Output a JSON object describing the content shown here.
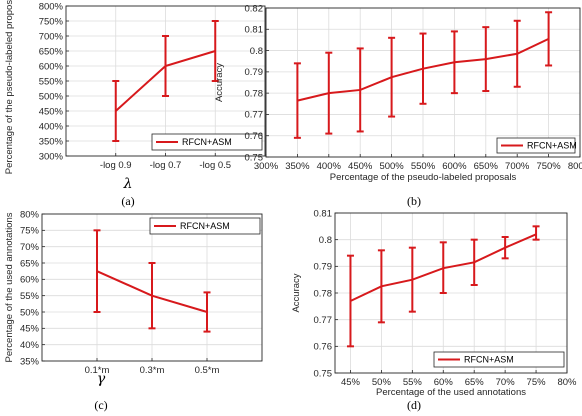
{
  "colors": {
    "series": "#d7191c",
    "grid": "#dcdcdc",
    "axis": "#262626"
  },
  "chart_data": [
    {
      "id": "a",
      "type": "line",
      "caption": "(a)",
      "xlabel": "λ",
      "ylabel": "Percentage of the pseudo-labeled proposals",
      "categories": [
        "-log 0.9",
        "-log 0.7",
        "-log 0.5"
      ],
      "yticks": [
        "300%",
        "350%",
        "400%",
        "450%",
        "500%",
        "550%",
        "600%",
        "650%",
        "700%",
        "750%",
        "800%"
      ],
      "ylim": [
        300,
        800
      ],
      "series": [
        {
          "name": "RFCN+ASM",
          "values": [
            450,
            600,
            650
          ],
          "err_low": [
            350,
            500,
            550
          ],
          "err_high": [
            550,
            700,
            750
          ]
        }
      ],
      "legend": "bottom-right",
      "grid": true
    },
    {
      "id": "b",
      "type": "line",
      "caption": "(b)",
      "xlabel": "Percentage of the pseudo-labeled proposals",
      "ylabel": "Accuracy",
      "xticks": [
        "300%",
        "350%",
        "400%",
        "450%",
        "500%",
        "550%",
        "600%",
        "650%",
        "700%",
        "750%",
        "800%"
      ],
      "yticks": [
        "0.75",
        "0.76",
        "0.77",
        "0.78",
        "0.79",
        "0.8",
        "0.81",
        "0.82"
      ],
      "xlim": [
        300,
        800
      ],
      "ylim": [
        0.75,
        0.82
      ],
      "series": [
        {
          "name": "RFCN+ASM",
          "x": [
            350,
            400,
            450,
            500,
            550,
            600,
            650,
            700,
            750
          ],
          "values": [
            0.7765,
            0.78,
            0.7815,
            0.7875,
            0.7915,
            0.7945,
            0.796,
            0.7985,
            0.8055
          ],
          "err_low": [
            0.759,
            0.761,
            0.762,
            0.769,
            0.775,
            0.78,
            0.781,
            0.783,
            0.793
          ],
          "err_high": [
            0.794,
            0.799,
            0.801,
            0.806,
            0.808,
            0.809,
            0.811,
            0.814,
            0.818
          ]
        }
      ],
      "legend": "bottom-right",
      "grid": true
    },
    {
      "id": "c",
      "type": "line",
      "caption": "(c)",
      "xlabel": "γ",
      "ylabel": "Percentage of the used annotations",
      "categories": [
        "0.1*m",
        "0.3*m",
        "0.5*m"
      ],
      "yticks": [
        "35%",
        "40%",
        "45%",
        "50%",
        "55%",
        "60%",
        "65%",
        "70%",
        "75%",
        "80%"
      ],
      "ylim": [
        35,
        80
      ],
      "series": [
        {
          "name": "RFCN+ASM",
          "values": [
            62.5,
            55,
            50
          ],
          "err_low": [
            50,
            45,
            44
          ],
          "err_high": [
            75,
            65,
            56
          ]
        }
      ],
      "legend": "top-right",
      "grid": true
    },
    {
      "id": "d",
      "type": "line",
      "caption": "(d)",
      "xlabel": "Percentage of the used annotations",
      "ylabel": "Accuracy",
      "xticks": [
        "45%",
        "50%",
        "55%",
        "60%",
        "65%",
        "70%",
        "75%",
        "80%"
      ],
      "yticks": [
        "0.75",
        "0.76",
        "0.77",
        "0.78",
        "0.79",
        "0.8",
        "0.81"
      ],
      "xlim": [
        42.5,
        80
      ],
      "ylim": [
        0.75,
        0.81
      ],
      "series": [
        {
          "name": "RFCN+ASM",
          "x": [
            45,
            50,
            55,
            60,
            65,
            70,
            75
          ],
          "values": [
            0.777,
            0.7825,
            0.785,
            0.7893,
            0.7915,
            0.797,
            0.802
          ],
          "err_low": [
            0.76,
            0.769,
            0.773,
            0.78,
            0.783,
            0.793,
            0.8
          ],
          "err_high": [
            0.794,
            0.796,
            0.797,
            0.799,
            0.8,
            0.801,
            0.805
          ]
        }
      ],
      "legend": "bottom-right",
      "grid": true
    }
  ]
}
